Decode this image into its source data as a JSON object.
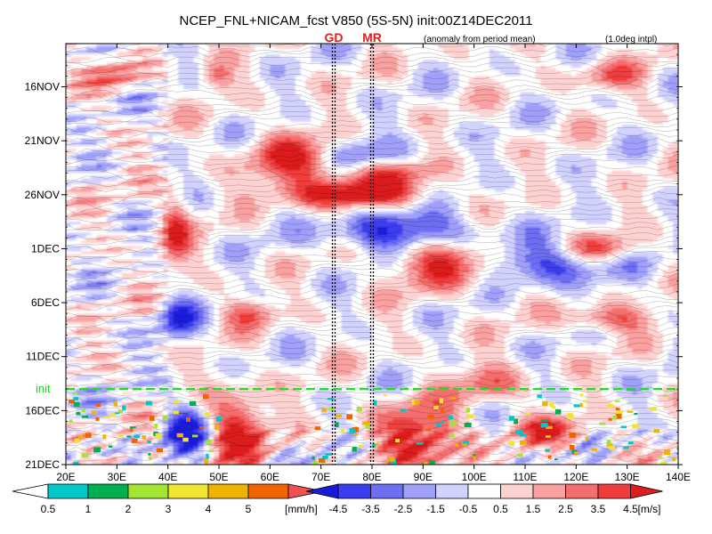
{
  "chart_data": {
    "type": "heatmap",
    "title": "NCEP_FNL+NICAM_fcst V850 (5S-5N) init:00Z14DEC2011",
    "note_left": "(anomaly from period mean)",
    "note_right": "(1.0deg intpl)",
    "x_ticks": [
      "20E",
      "30E",
      "40E",
      "50E",
      "60E",
      "70E",
      "80E",
      "90E",
      "100E",
      "110E",
      "120E",
      "130E",
      "140E"
    ],
    "x_range": [
      20,
      140
    ],
    "y_ticks": [
      "16NOV",
      "21NOV",
      "26NOV",
      "1DEC",
      "6DEC",
      "11DEC",
      "16DEC",
      "21DEC"
    ],
    "y_range": [
      "12NOV2011",
      "21DEC2011"
    ],
    "markers": [
      {
        "label": "GD",
        "lon": 72.5
      },
      {
        "label": "MR",
        "lon": 80
      }
    ],
    "init_line": {
      "label": "init",
      "date": "14DEC2011"
    },
    "precip_colorbar": {
      "labels": [
        "0.5",
        "1",
        "2",
        "3",
        "4",
        "5"
      ],
      "unit": "[mm/h]",
      "colors": [
        "#00c8c8",
        "#00b050",
        "#a0e632",
        "#f0e632",
        "#f0b400",
        "#f06400"
      ]
    },
    "wind_colorbar": {
      "labels": [
        "-4.5",
        "-3.5",
        "-2.5",
        "-1.5",
        "-0.5",
        "0.5",
        "1.5",
        "2.5",
        "3.5",
        "4.5"
      ],
      "unit": "[m/s]",
      "colors": [
        "#1a1adc",
        "#3c3cf0",
        "#6e6ef5",
        "#a0a0fa",
        "#d2d2ff",
        "#ffffff",
        "#ffd2d2",
        "#faa0a0",
        "#f56e6e",
        "#f03c3c",
        "#dc1e1e"
      ]
    },
    "features": [
      {
        "lon0": 58,
        "day0": 9,
        "lon1": 73,
        "day1": 13,
        "v": 4.5
      },
      {
        "lon0": 66,
        "day0": 13,
        "lon1": 88,
        "day1": 15,
        "v": 5
      },
      {
        "lon0": 74,
        "day0": 11,
        "lon1": 90,
        "day1": 13,
        "v": 3.5
      },
      {
        "lon0": 86,
        "day0": 18,
        "lon1": 104,
        "day1": 22,
        "v": 5
      },
      {
        "lon0": 40,
        "day0": 15,
        "lon1": 43,
        "day1": 20,
        "v": 4
      },
      {
        "lon0": 75,
        "day0": 16,
        "lon1": 100,
        "day1": 19,
        "v": -5
      },
      {
        "lon0": 70,
        "day0": 9,
        "lon1": 84,
        "day1": 12,
        "v": -3
      },
      {
        "lon0": 102,
        "day0": 19,
        "lon1": 124,
        "day1": 22,
        "v": -4
      },
      {
        "lon0": 120,
        "day0": 18,
        "lon1": 130,
        "day1": 20,
        "v": 3.5
      },
      {
        "lon0": 39,
        "day0": 24,
        "lon1": 45,
        "day1": 27,
        "v": -4
      },
      {
        "lon0": 52,
        "day0": 24,
        "lon1": 60,
        "day1": 26,
        "v": 3
      },
      {
        "lon0": 120,
        "day0": 25,
        "lon1": 133,
        "day1": 26,
        "v": 3.5
      },
      {
        "lon0": 40,
        "day0": 34,
        "lon1": 47,
        "day1": 38,
        "v": -5
      },
      {
        "lon0": 49,
        "day0": 33,
        "lon1": 58,
        "day1": 39,
        "v": 5
      },
      {
        "lon0": 83,
        "day0": 34,
        "lon1": 96,
        "day1": 39,
        "v": 5
      },
      {
        "lon0": 110,
        "day0": 35,
        "lon1": 120,
        "day1": 37,
        "v": 4.5
      },
      {
        "lon0": 98,
        "day0": 30,
        "lon1": 108,
        "day1": 33,
        "v": 3
      },
      {
        "lon0": 122,
        "day0": 2,
        "lon1": 132,
        "day1": 4,
        "v": 3
      },
      {
        "lon0": 26,
        "day0": 2,
        "lon1": 34,
        "day1": 4,
        "v": 3
      },
      {
        "lon0": 47,
        "day0": 2,
        "lon1": 52,
        "day1": 4,
        "v": 3
      }
    ]
  }
}
